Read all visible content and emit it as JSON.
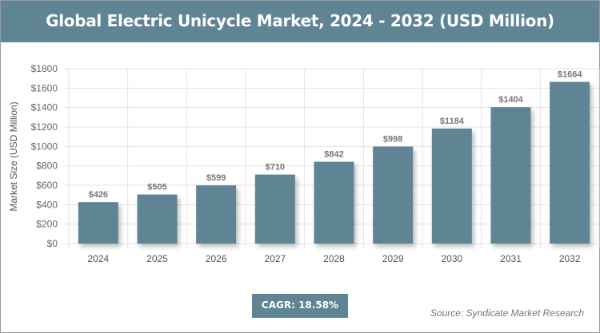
{
  "chart_data": {
    "type": "bar",
    "title": "Global Electric Unicycle Market, 2024 - 2032 (USD Million)",
    "xlabel": "",
    "ylabel": "Market Size (USD Million)",
    "categories": [
      "2024",
      "2025",
      "2026",
      "2027",
      "2028",
      "2029",
      "2030",
      "2031",
      "2032"
    ],
    "values": [
      426,
      505,
      599,
      710,
      842,
      998,
      1184,
      1404,
      1664
    ],
    "data_labels": [
      "$426",
      "$505",
      "$599",
      "$710",
      "$842",
      "$998",
      "$1184",
      "$1404",
      "$1664"
    ],
    "ylim": [
      0,
      1800
    ],
    "yticks": [
      0,
      200,
      400,
      600,
      800,
      1000,
      1200,
      1400,
      1600,
      1800
    ],
    "ytick_labels": [
      "$0",
      "$200",
      "$400",
      "$600",
      "$800",
      "$1000",
      "$1200",
      "$1400",
      "$1600",
      "$1800"
    ],
    "grid": true,
    "bar_color": "#5f8494"
  },
  "cagr": "CAGR: 18.58%",
  "source": "Source: Syndicate Market Research"
}
